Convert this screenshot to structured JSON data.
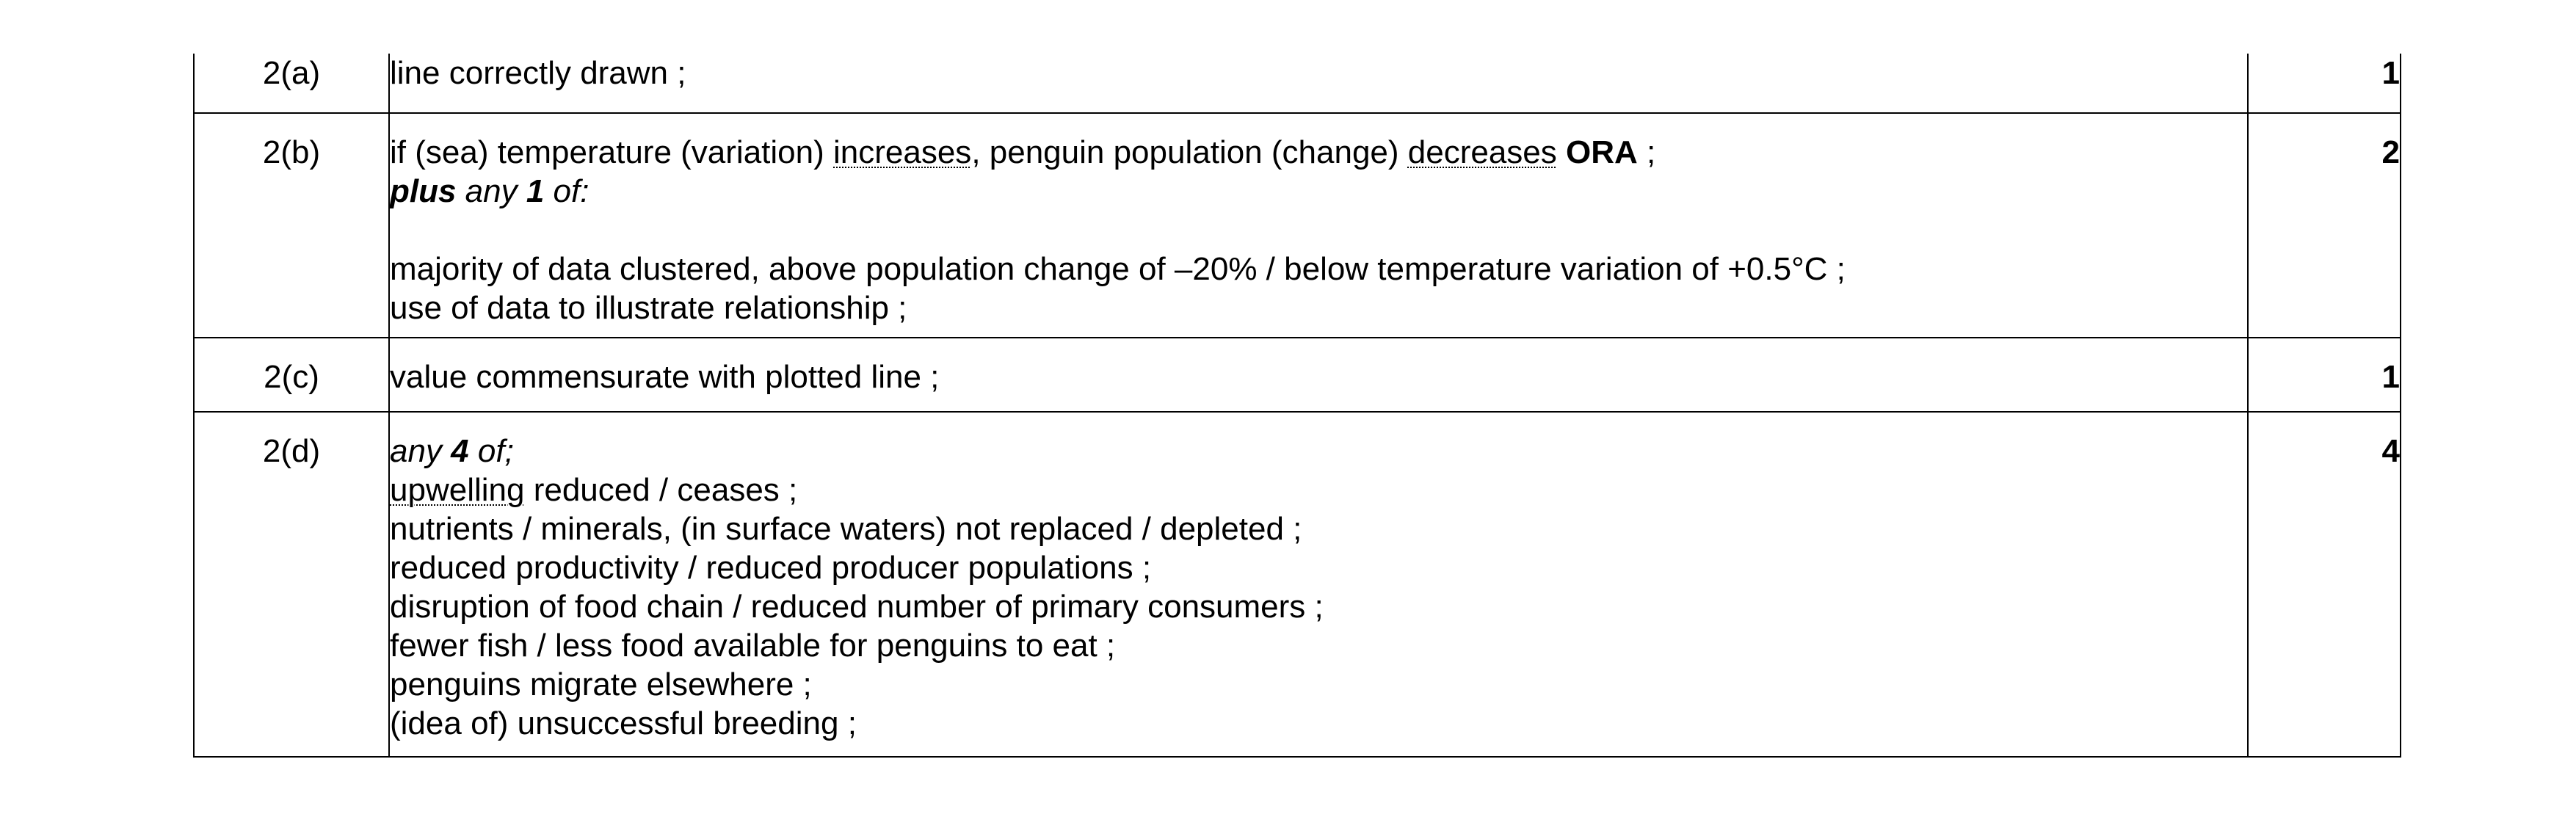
{
  "rows": [
    {
      "question": "2(a)",
      "answer": {
        "line1": "line correctly drawn ;"
      },
      "marks": "1"
    },
    {
      "question": "2(b)",
      "answer": {
        "line1_part1": "if (sea) temperature (variation) ",
        "line1_increases": "increases",
        "line1_part2": ", penguin population (change) ",
        "line1_decreases": "decreases",
        "line1_space": " ",
        "line1_ora": "ORA",
        "line1_end": " ;",
        "plus": "plus",
        "any": " any ",
        "num": "1",
        "of": " of:",
        "point1": "majority of data clustered, above population change of –20% / below temperature variation of +0.5°C ;",
        "point2": "use of data to illustrate relationship ;"
      },
      "marks": "2"
    },
    {
      "question": "2(c)",
      "answer": {
        "line1": "value commensurate with plotted line ;"
      },
      "marks": "1"
    },
    {
      "question": "2(d)",
      "answer": {
        "any": "any ",
        "num": "4",
        "of": " of;",
        "upwelling": "upwelling",
        "upwelling_rest": " reduced / ceases ;",
        "point2": "nutrients / minerals, (in surface waters) not replaced / depleted ;",
        "point3": "reduced productivity / reduced producer populations ;",
        "point4": "disruption of food chain / reduced number of primary consumers ;",
        "point5": "fewer fish / less food available for penguins to eat ;",
        "point6": "penguins migrate elsewhere ;",
        "point7": "(idea of) unsuccessful breeding ;"
      },
      "marks": "4"
    }
  ]
}
